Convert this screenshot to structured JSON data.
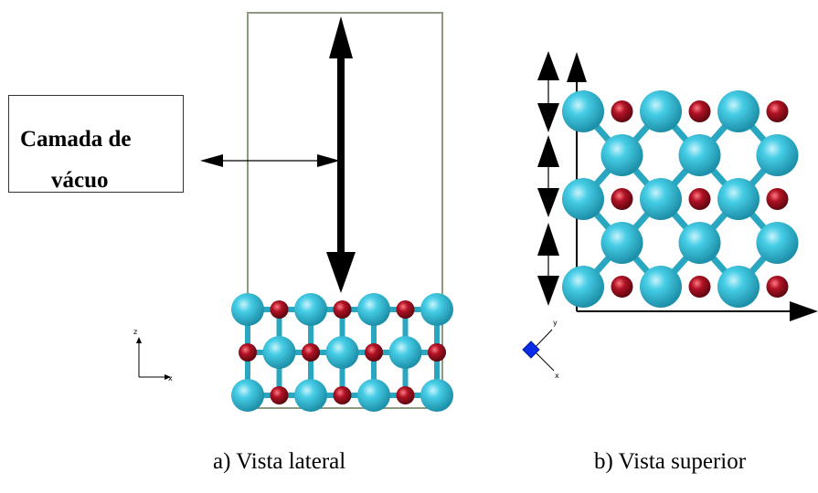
{
  "label_box": {
    "line1": "Camada de",
    "line2": "vácuo"
  },
  "captions": {
    "a": "a)  Vista lateral",
    "b": "b) Vista superior"
  },
  "axes": {
    "side": {
      "vertical": "z",
      "horizontal": "x"
    },
    "top": {
      "upper": "y",
      "lower": "x"
    }
  },
  "colors": {
    "large_atom": "#33c4de",
    "small_atom": "#a0101e",
    "bond": "#2aa7c0",
    "cell_border": "#8c9a80",
    "axis_marker": "#0a2be8",
    "arrow": "#000000"
  },
  "atoms": {
    "side_large": [
      [
        0,
        0
      ],
      [
        2,
        0
      ],
      [
        4,
        0
      ],
      [
        6,
        0
      ],
      [
        1,
        1
      ],
      [
        3,
        1
      ],
      [
        5,
        1
      ],
      [
        0,
        2
      ],
      [
        2,
        2
      ],
      [
        4,
        2
      ],
      [
        6,
        2
      ]
    ],
    "side_small": [
      [
        1,
        0
      ],
      [
        3,
        0
      ],
      [
        5,
        0
      ],
      [
        0,
        1
      ],
      [
        2,
        1
      ],
      [
        4,
        1
      ],
      [
        6,
        1
      ],
      [
        1,
        2
      ],
      [
        3,
        2
      ],
      [
        5,
        2
      ]
    ],
    "top_large": [
      [
        0,
        0
      ],
      [
        2,
        0
      ],
      [
        4,
        0
      ],
      [
        1,
        1
      ],
      [
        3,
        1
      ],
      [
        5,
        1
      ],
      [
        0,
        2
      ],
      [
        2,
        2
      ],
      [
        4,
        2
      ],
      [
        1,
        3
      ],
      [
        3,
        3
      ],
      [
        5,
        3
      ],
      [
        0,
        4
      ],
      [
        2,
        4
      ],
      [
        4,
        4
      ]
    ],
    "top_small": [
      [
        1,
        0
      ],
      [
        3,
        0
      ],
      [
        5,
        0
      ],
      [
        1,
        2
      ],
      [
        3,
        2
      ],
      [
        5,
        2
      ],
      [
        1,
        4
      ],
      [
        3,
        4
      ],
      [
        5,
        4
      ]
    ]
  }
}
